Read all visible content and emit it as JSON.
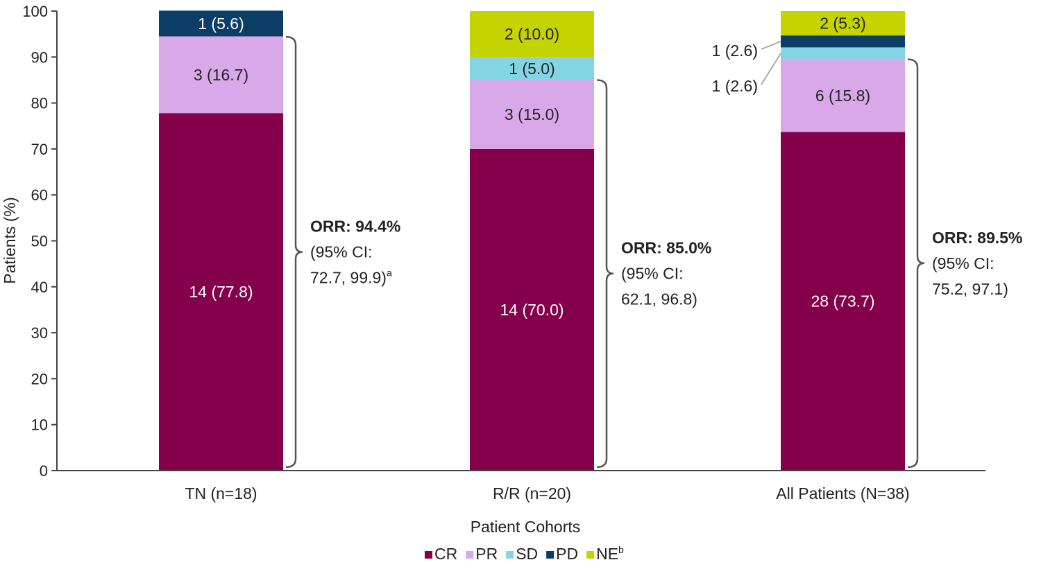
{
  "chart_data": {
    "type": "bar",
    "stacked": true,
    "xlabel": "Patient Cohorts",
    "ylabel": "Patients (%)",
    "ylim": [
      0,
      100
    ],
    "yticks": [
      0,
      10,
      20,
      30,
      40,
      50,
      60,
      70,
      80,
      90,
      100
    ],
    "grid": false,
    "legend_position": "bottom",
    "categories": [
      "TN (n=18)",
      "R/R (n=20)",
      "All Patients (N=38)"
    ],
    "series": [
      {
        "name": "CR",
        "superscript": "",
        "color": "#85004b",
        "values": [
          77.8,
          70.0,
          73.7
        ],
        "labels": [
          "14 (77.8)",
          "14 (70.0)",
          "28 (73.7)"
        ]
      },
      {
        "name": "PR",
        "superscript": "",
        "color": "#d8a8e9",
        "values": [
          16.7,
          15.0,
          15.8
        ],
        "labels": [
          "3 (16.7)",
          "3 (15.0)",
          "6 (15.8)"
        ]
      },
      {
        "name": "SD",
        "superscript": "",
        "color": "#84d4e3",
        "values": [
          0,
          5.0,
          2.6
        ],
        "labels": [
          "",
          "1 (5.0)",
          "1 (2.6)"
        ]
      },
      {
        "name": "PD",
        "superscript": "",
        "color": "#0c3d66",
        "values": [
          5.6,
          0,
          2.6
        ],
        "labels": [
          "1 (5.6)",
          "",
          "1 (2.6)"
        ]
      },
      {
        "name": "NE",
        "superscript": "b",
        "color": "#c5d300",
        "values": [
          0,
          10.0,
          5.3
        ],
        "labels": [
          "",
          "2 (10.0)",
          "2 (5.3)"
        ]
      }
    ],
    "annotations": [
      {
        "category": "TN (n=18)",
        "orr": 94.4,
        "title": "ORR: 94.4%",
        "line1": "(95% CI:",
        "line2": "72.7, 99.9)",
        "superscript": "a"
      },
      {
        "category": "R/R (n=20)",
        "orr": 85.0,
        "title": "ORR: 85.0%",
        "line1": "(95% CI:",
        "line2": "62.1, 96.8)",
        "superscript": ""
      },
      {
        "category": "All Patients (N=38)",
        "orr": 89.5,
        "title": "ORR: 89.5%",
        "line1": "(95% CI:",
        "line2": "75.2, 97.1)",
        "superscript": ""
      }
    ],
    "colors": {
      "label_light": "#ffffff",
      "label_dark": "#222222",
      "axis": "#444444",
      "bracket": "#555555"
    }
  }
}
